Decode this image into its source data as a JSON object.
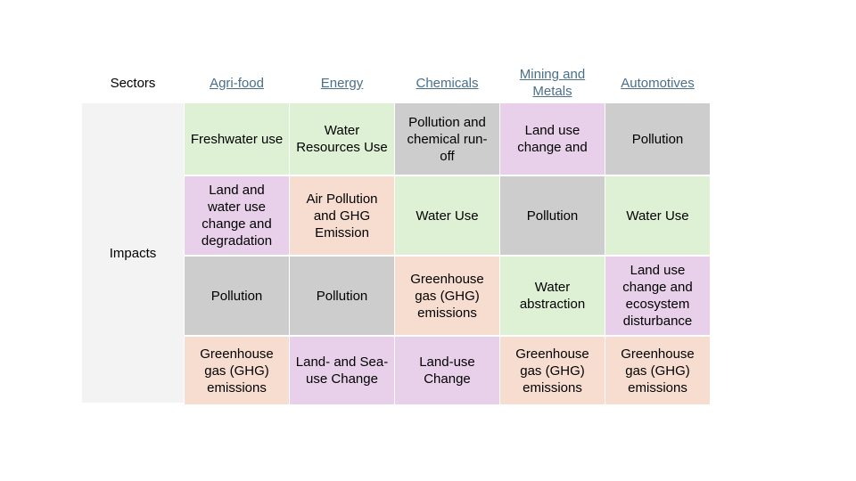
{
  "header": {
    "sectors_label": "Sectors",
    "sectors": [
      {
        "label": "Agri-food"
      },
      {
        "label": "Energy"
      },
      {
        "label": "Chemicals"
      },
      {
        "label": "Mining and Metals"
      },
      {
        "label": "Automotives"
      }
    ]
  },
  "impacts_label": "Impacts",
  "colors": {
    "green": "#dff1d5",
    "purple": "#e8d0ea",
    "grey": "#cdcdcd",
    "peach": "#f7ddd0",
    "link": "#4a6f8a",
    "impacts_bg": "#f3f3f3"
  },
  "rows": [
    [
      {
        "text": "Freshwater use",
        "color": "green"
      },
      {
        "text": "Water Resources Use",
        "color": "green"
      },
      {
        "text": "Pollution and chemical run-off",
        "color": "grey"
      },
      {
        "text": "Land use change and",
        "color": "purple"
      },
      {
        "text": "Pollution",
        "color": "grey"
      }
    ],
    [
      {
        "text": "Land and water use change and degradation",
        "color": "purple"
      },
      {
        "text": "Air Pollution and GHG Emission",
        "color": "peach"
      },
      {
        "text": "Water Use",
        "color": "green"
      },
      {
        "text": "Pollution",
        "color": "grey"
      },
      {
        "text": "Water Use",
        "color": "green"
      }
    ],
    [
      {
        "text": "Pollution",
        "color": "grey"
      },
      {
        "text": "Pollution",
        "color": "grey"
      },
      {
        "text": "Greenhouse gas (GHG) emissions",
        "color": "peach"
      },
      {
        "text": "Water abstraction",
        "color": "green"
      },
      {
        "text": "Land use change and ecosystem disturbance",
        "color": "purple"
      }
    ],
    [
      {
        "text": "Greenhouse gas (GHG) emissions",
        "color": "peach"
      },
      {
        "text": "Land- and Sea-use Change",
        "color": "purple"
      },
      {
        "text": "Land-use Change",
        "color": "purple"
      },
      {
        "text": "Greenhouse gas (GHG) emissions",
        "color": "peach"
      },
      {
        "text": "Greenhouse gas (GHG) emissions",
        "color": "peach"
      }
    ]
  ]
}
